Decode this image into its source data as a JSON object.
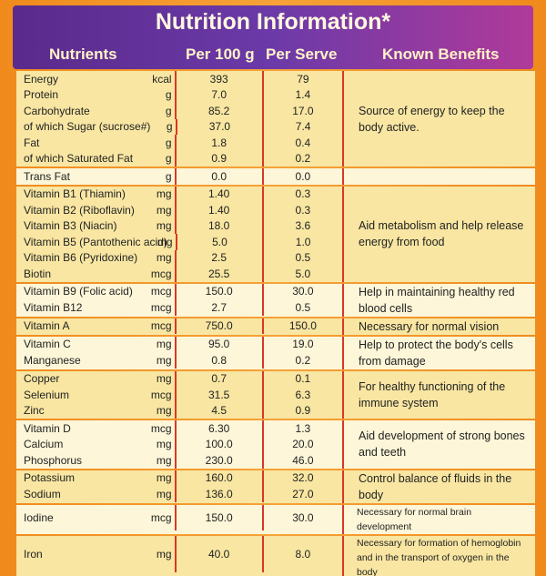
{
  "header": {
    "title": "Nutrition Information*",
    "columns": [
      "Nutrients",
      "Per 100 g",
      "Per Serve",
      "Known Benefits"
    ]
  },
  "groups": [
    {
      "benefit": "Source of energy to keep the body active.",
      "rows": [
        {
          "name": "Energy",
          "unit": "kcal",
          "per_100g": "393",
          "per_serve": "79"
        },
        {
          "name": "Protein",
          "unit": "g",
          "per_100g": "7.0",
          "per_serve": "1.4"
        },
        {
          "name": "Carbohydrate",
          "unit": "g",
          "per_100g": "85.2",
          "per_serve": "17.0"
        },
        {
          "name": "of which Sugar (sucrose#)",
          "unit": "g",
          "per_100g": "37.0",
          "per_serve": "7.4"
        },
        {
          "name": "Fat",
          "unit": "g",
          "per_100g": "1.8",
          "per_serve": "0.4"
        },
        {
          "name": "of which Saturated Fat",
          "unit": "g",
          "per_100g": "0.9",
          "per_serve": "0.2"
        }
      ]
    },
    {
      "rows": [
        {
          "name": "Trans Fat",
          "unit": "g",
          "per_100g": "0.0",
          "per_serve": "0.0"
        }
      ]
    },
    {
      "benefit": "Aid metabolism and help release energy from food",
      "rows": [
        {
          "name": "Vitamin B1 (Thiamin)",
          "unit": "mg",
          "per_100g": "1.40",
          "per_serve": "0.3"
        },
        {
          "name": "Vitamin B2 (Riboflavin)",
          "unit": "mg",
          "per_100g": "1.40",
          "per_serve": "0.3"
        },
        {
          "name": "Vitamin B3 (Niacin)",
          "unit": "mg",
          "per_100g": "18.0",
          "per_serve": "3.6"
        },
        {
          "name": "Vitamin B5 (Pantothenic acid)",
          "unit": "mg",
          "per_100g": "5.0",
          "per_serve": "1.0"
        },
        {
          "name": "Vitamin B6 (Pyridoxine)",
          "unit": "mg",
          "per_100g": "2.5",
          "per_serve": "0.5"
        },
        {
          "name": "Biotin",
          "unit": "mcg",
          "per_100g": "25.5",
          "per_serve": "5.0"
        }
      ]
    },
    {
      "benefit": "Help in maintaining healthy red blood cells",
      "rows": [
        {
          "name": "Vitamin B9 (Folic acid)",
          "unit": "mcg",
          "per_100g": "150.0",
          "per_serve": "30.0"
        },
        {
          "name": "Vitamin B12",
          "unit": "mcg",
          "per_100g": "2.7",
          "per_serve": "0.5"
        }
      ]
    },
    {
      "benefit": "Necessary for normal vision",
      "rows": [
        {
          "name": "Vitamin A",
          "unit": "mcg",
          "per_100g": "750.0",
          "per_serve": "150.0"
        }
      ]
    },
    {
      "benefit": "Help to protect the body's cells from damage",
      "rows": [
        {
          "name": "Vitamin C",
          "unit": "mg",
          "per_100g": "95.0",
          "per_serve": "19.0"
        },
        {
          "name": "Manganese",
          "unit": "mg",
          "per_100g": "0.8",
          "per_serve": "0.2"
        }
      ]
    },
    {
      "benefit": "For healthy functioning of the immune system",
      "rows": [
        {
          "name": "Copper",
          "unit": "mg",
          "per_100g": "0.7",
          "per_serve": "0.1"
        },
        {
          "name": "Selenium",
          "unit": "mcg",
          "per_100g": "31.5",
          "per_serve": "6.3"
        },
        {
          "name": "Zinc",
          "unit": "mg",
          "per_100g": "4.5",
          "per_serve": "0.9"
        }
      ]
    },
    {
      "benefit": "Aid development of strong bones and teeth",
      "rows": [
        {
          "name": "Vitamin D",
          "unit": "mcg",
          "per_100g": "6.30",
          "per_serve": "1.3"
        },
        {
          "name": "Calcium",
          "unit": "mg",
          "per_100g": "100.0",
          "per_serve": "20.0"
        },
        {
          "name": "Phosphorus",
          "unit": "mg",
          "per_100g": "230.0",
          "per_serve": "46.0"
        }
      ]
    },
    {
      "benefit": "Control balance of fluids in the body",
      "rows": [
        {
          "name": "Potassium",
          "unit": "mg",
          "per_100g": "160.0",
          "per_serve": "32.0"
        },
        {
          "name": "Sodium",
          "unit": "mg",
          "per_100g": "136.0",
          "per_serve": "27.0"
        }
      ]
    },
    {
      "benefit": "Necessary for normal brain development",
      "rows": [
        {
          "name": "Iodine",
          "unit": "mcg",
          "per_100g": "150.0",
          "per_serve": "30.0"
        }
      ]
    },
    {
      "benefit": "Necessary for formation of hemoglobin and in the transport of oxygen in the body",
      "rows": [
        {
          "name": "Iron",
          "unit": "mg",
          "per_100g": "40.0",
          "per_serve": "8.0"
        }
      ]
    }
  ]
}
